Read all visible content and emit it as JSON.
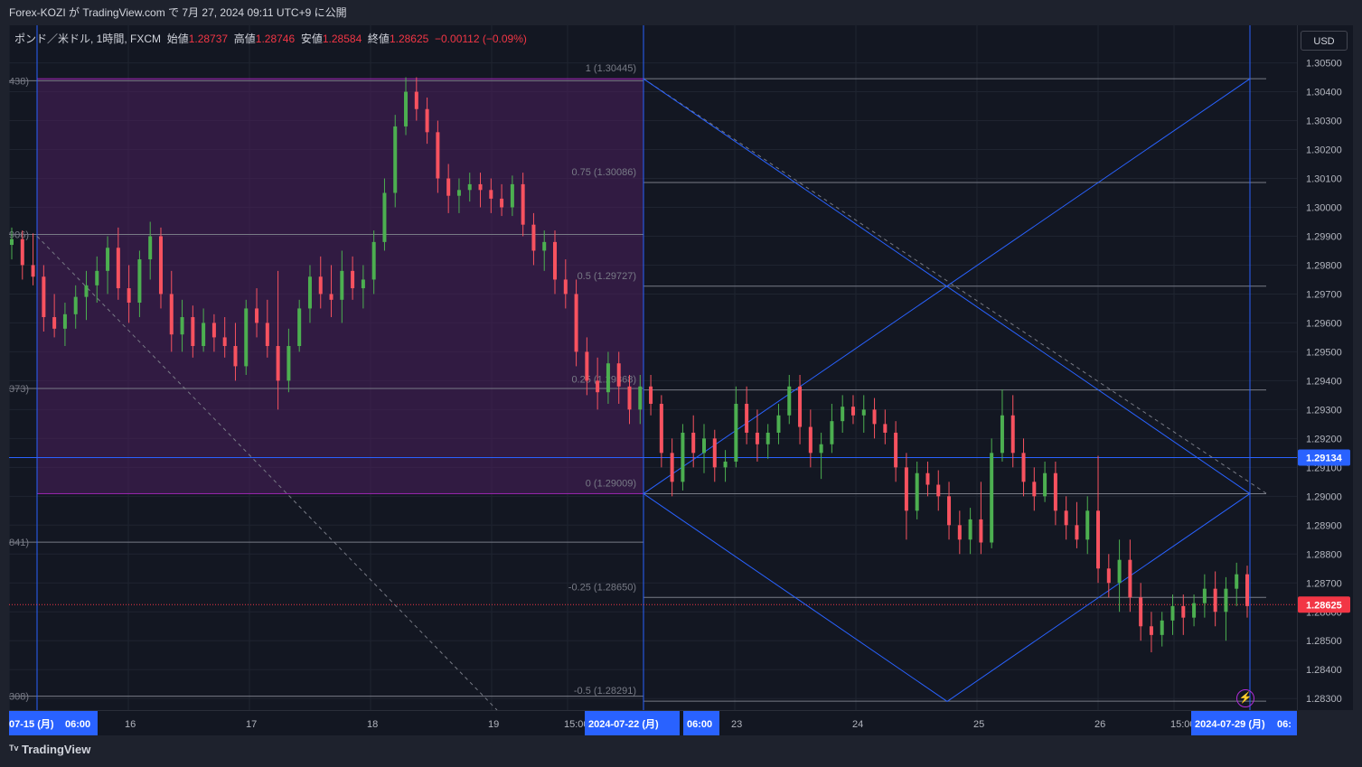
{
  "header": {
    "publish_text": "Forex-KOZI が TradingView.com で 7月 27, 2024 09:11 UTC+9 に公開"
  },
  "legend": {
    "symbol": "ポンド／米ドル, 1時間, FXCM",
    "open_label": "始値",
    "open": "1.28737",
    "high_label": "高値",
    "high": "1.28746",
    "low_label": "安値",
    "low": "1.28584",
    "close_label": "終値",
    "close": "1.28625",
    "change": "−0.00112 (−0.09%)"
  },
  "currency_button": "USD",
  "footer": {
    "brand": "TradingView"
  },
  "alert_icon": "lightning-icon",
  "colors": {
    "background": "#131722",
    "up": "#26a69a",
    "up_candle": "#4caf50",
    "down": "#f7525f",
    "fib_line": "#787b86",
    "blue_line": "#2962ff",
    "box_fill": "#4a1f5c",
    "box_border": "#9c27b0",
    "price_label_blue": "#2962ff",
    "price_label_red": "#f23645"
  },
  "chart_data": {
    "type": "candlestick",
    "symbol": "GBPUSD",
    "interval": "1h",
    "y_axis": {
      "ticks": [
        "1.30500",
        "1.30400",
        "1.30300",
        "1.30200",
        "1.30100",
        "1.30000",
        "1.29900",
        "1.29800",
        "1.29700",
        "1.29600",
        "1.29500",
        "1.29400",
        "1.29300",
        "1.29200",
        "1.29100",
        "1.29000",
        "1.28900",
        "1.28800",
        "1.28700",
        "1.28600",
        "1.28500",
        "1.28400",
        "1.28300"
      ],
      "ylim": [
        1.2826,
        1.3063
      ]
    },
    "x_axis": {
      "ticks": [
        {
          "label": "07-15 (月)",
          "highlight": true
        },
        {
          "label": "06:00",
          "highlight": true
        },
        {
          "label": "16"
        },
        {
          "label": "17"
        },
        {
          "label": "18"
        },
        {
          "label": "19"
        },
        {
          "label": "15:00"
        },
        {
          "label": "2024-07-22 (月)",
          "highlight": true
        },
        {
          "label": "06:00",
          "highlight": true
        },
        {
          "label": "23"
        },
        {
          "label": "24"
        },
        {
          "label": "25"
        },
        {
          "label": "26"
        },
        {
          "label": "15:00"
        },
        {
          "label": "2024-07-29 (月)",
          "highlight": true
        },
        {
          "label": "06:",
          "highlight": true
        }
      ]
    },
    "price_labels": [
      {
        "value": 1.29134,
        "text": "1.29134",
        "color": "blue"
      },
      {
        "value": 1.28625,
        "text": "1.28625",
        "color": "red"
      }
    ],
    "fib_levels": [
      {
        "ratio": "1",
        "price": 1.30445,
        "label": "1 (1.30445)"
      },
      {
        "ratio": "0.75",
        "price": 1.30086,
        "label": "0.75 (1.30086)"
      },
      {
        "ratio": "0.5",
        "price": 1.29727,
        "label": "0.5 (1.29727)"
      },
      {
        "ratio": "0.25",
        "price": 1.29368,
        "label": "0.25 (1.29368)"
      },
      {
        "ratio": "0",
        "price": 1.29009,
        "label": "0 (1.29009)"
      },
      {
        "ratio": "-0.25",
        "price": 1.2865,
        "label": "-0.25 (1.28650)"
      },
      {
        "ratio": "-0.5",
        "price": 1.28291,
        "label": "-0.5 (1.28291)"
      }
    ],
    "left_fib_partial_labels": [
      "438)",
      "906)",
      "373)",
      "841)",
      "308)"
    ],
    "left_fib_prices": [
      1.30438,
      1.29906,
      1.29373,
      1.28841,
      1.28308
    ],
    "candles": [
      [
        1.2987,
        1.2993,
        1.2982,
        1.2989
      ],
      [
        1.2989,
        1.2992,
        1.2975,
        1.298
      ],
      [
        1.298,
        1.2991,
        1.2973,
        1.2976
      ],
      [
        1.2976,
        1.298,
        1.2957,
        1.2962
      ],
      [
        1.2962,
        1.297,
        1.2955,
        1.2958
      ],
      [
        1.2958,
        1.2967,
        1.2952,
        1.2963
      ],
      [
        1.2963,
        1.2973,
        1.2958,
        1.2969
      ],
      [
        1.2969,
        1.2978,
        1.2961,
        1.2973
      ],
      [
        1.2973,
        1.2983,
        1.2967,
        1.2978
      ],
      [
        1.2978,
        1.299,
        1.297,
        1.2986
      ],
      [
        1.2986,
        1.2993,
        1.2968,
        1.2972
      ],
      [
        1.2972,
        1.298,
        1.296,
        1.2967
      ],
      [
        1.2967,
        1.2985,
        1.2962,
        1.2982
      ],
      [
        1.2982,
        1.2995,
        1.2975,
        1.299
      ],
      [
        1.299,
        1.2993,
        1.2965,
        1.297
      ],
      [
        1.297,
        1.2978,
        1.295,
        1.2956
      ],
      [
        1.2956,
        1.2968,
        1.295,
        1.2962
      ],
      [
        1.2962,
        1.2966,
        1.2948,
        1.2952
      ],
      [
        1.2952,
        1.2965,
        1.295,
        1.296
      ],
      [
        1.296,
        1.2963,
        1.295,
        1.2955
      ],
      [
        1.2955,
        1.2962,
        1.2948,
        1.2952
      ],
      [
        1.2952,
        1.296,
        1.294,
        1.2945
      ],
      [
        1.2945,
        1.2968,
        1.2942,
        1.2965
      ],
      [
        1.2965,
        1.2972,
        1.2955,
        1.296
      ],
      [
        1.296,
        1.2968,
        1.2948,
        1.2952
      ],
      [
        1.2952,
        1.2978,
        1.293,
        1.294
      ],
      [
        1.294,
        1.2958,
        1.2936,
        1.2952
      ],
      [
        1.2952,
        1.2968,
        1.295,
        1.2965
      ],
      [
        1.2965,
        1.298,
        1.296,
        1.2976
      ],
      [
        1.2976,
        1.2983,
        1.2965,
        1.297
      ],
      [
        1.297,
        1.298,
        1.2962,
        1.2968
      ],
      [
        1.2968,
        1.2985,
        1.296,
        1.2978
      ],
      [
        1.2978,
        1.2983,
        1.2968,
        1.2972
      ],
      [
        1.2972,
        1.298,
        1.2965,
        1.2975
      ],
      [
        1.2975,
        1.2992,
        1.297,
        1.2988
      ],
      [
        1.2988,
        1.301,
        1.2985,
        1.3005
      ],
      [
        1.3005,
        1.3032,
        1.3,
        1.3028
      ],
      [
        1.3028,
        1.3045,
        1.3025,
        1.304
      ],
      [
        1.304,
        1.3045,
        1.303,
        1.3034
      ],
      [
        1.3034,
        1.3038,
        1.3022,
        1.3026
      ],
      [
        1.3026,
        1.303,
        1.3005,
        1.301
      ],
      [
        1.301,
        1.3015,
        1.2998,
        1.3004
      ],
      [
        1.3004,
        1.301,
        1.2998,
        1.3006
      ],
      [
        1.3006,
        1.3012,
        1.3002,
        1.3008
      ],
      [
        1.3008,
        1.3012,
        1.3,
        1.3006
      ],
      [
        1.3006,
        1.301,
        1.2998,
        1.3003
      ],
      [
        1.3003,
        1.3008,
        1.2997,
        1.3
      ],
      [
        1.3,
        1.3011,
        1.2997,
        1.3008
      ],
      [
        1.3008,
        1.3012,
        1.299,
        1.2994
      ],
      [
        1.2994,
        1.2998,
        1.298,
        1.2985
      ],
      [
        1.2985,
        1.2992,
        1.2978,
        1.2988
      ],
      [
        1.2988,
        1.2992,
        1.297,
        1.2975
      ],
      [
        1.2975,
        1.2982,
        1.2965,
        1.297
      ],
      [
        1.297,
        1.2975,
        1.2945,
        1.295
      ],
      [
        1.295,
        1.2955,
        1.2935,
        1.294
      ],
      [
        1.294,
        1.2948,
        1.293,
        1.2936
      ],
      [
        1.2936,
        1.295,
        1.2932,
        1.2946
      ],
      [
        1.2946,
        1.295,
        1.2932,
        1.2938
      ],
      [
        1.2938,
        1.2942,
        1.2925,
        1.293
      ],
      [
        1.293,
        1.2942,
        1.2925,
        1.2938
      ],
      [
        1.2938,
        1.2942,
        1.2928,
        1.2932
      ],
      [
        1.2932,
        1.2935,
        1.291,
        1.2915
      ],
      [
        1.2915,
        1.292,
        1.29,
        1.2905
      ],
      [
        1.2905,
        1.2925,
        1.2902,
        1.2922
      ],
      [
        1.2922,
        1.2928,
        1.291,
        1.2915
      ],
      [
        1.2915,
        1.2925,
        1.2908,
        1.292
      ],
      [
        1.292,
        1.2923,
        1.2905,
        1.291
      ],
      [
        1.291,
        1.2916,
        1.2905,
        1.2912
      ],
      [
        1.2912,
        1.2938,
        1.291,
        1.2932
      ],
      [
        1.2932,
        1.2938,
        1.2918,
        1.2922
      ],
      [
        1.2922,
        1.293,
        1.2912,
        1.2918
      ],
      [
        1.2918,
        1.2925,
        1.2913,
        1.2922
      ],
      [
        1.2922,
        1.2932,
        1.2918,
        1.2928
      ],
      [
        1.2928,
        1.2942,
        1.2925,
        1.2938
      ],
      [
        1.2938,
        1.2942,
        1.2918,
        1.2924
      ],
      [
        1.2924,
        1.293,
        1.291,
        1.2915
      ],
      [
        1.2915,
        1.2922,
        1.2906,
        1.2918
      ],
      [
        1.2918,
        1.2932,
        1.2915,
        1.2926
      ],
      [
        1.2926,
        1.2935,
        1.2922,
        1.2931
      ],
      [
        1.2931,
        1.2935,
        1.2925,
        1.2928
      ],
      [
        1.2928,
        1.2935,
        1.2922,
        1.293
      ],
      [
        1.293,
        1.2934,
        1.292,
        1.2925
      ],
      [
        1.2925,
        1.293,
        1.2918,
        1.2922
      ],
      [
        1.2922,
        1.2926,
        1.2905,
        1.291
      ],
      [
        1.291,
        1.2915,
        1.2885,
        1.2895
      ],
      [
        1.2895,
        1.2912,
        1.2892,
        1.2908
      ],
      [
        1.2908,
        1.2912,
        1.29,
        1.2904
      ],
      [
        1.2904,
        1.2909,
        1.2895,
        1.29
      ],
      [
        1.29,
        1.2905,
        1.2885,
        1.289
      ],
      [
        1.289,
        1.2895,
        1.288,
        1.2885
      ],
      [
        1.2885,
        1.2896,
        1.288,
        1.2892
      ],
      [
        1.2892,
        1.2905,
        1.288,
        1.2884
      ],
      [
        1.2884,
        1.292,
        1.2882,
        1.2915
      ],
      [
        1.2915,
        1.2937,
        1.2912,
        1.2928
      ],
      [
        1.2928,
        1.2935,
        1.291,
        1.2915
      ],
      [
        1.2915,
        1.292,
        1.29,
        1.2905
      ],
      [
        1.2905,
        1.291,
        1.2895,
        1.29
      ],
      [
        1.29,
        1.2912,
        1.2898,
        1.2908
      ],
      [
        1.2908,
        1.2912,
        1.289,
        1.2895
      ],
      [
        1.2895,
        1.29,
        1.2885,
        1.289
      ],
      [
        1.289,
        1.2898,
        1.2882,
        1.2885
      ],
      [
        1.2885,
        1.29,
        1.288,
        1.2895
      ],
      [
        1.2895,
        1.2914,
        1.287,
        1.2875
      ],
      [
        1.2875,
        1.288,
        1.2865,
        1.287
      ],
      [
        1.287,
        1.2885,
        1.286,
        1.2878
      ],
      [
        1.2878,
        1.2885,
        1.286,
        1.2865
      ],
      [
        1.2865,
        1.287,
        1.285,
        1.2855
      ],
      [
        1.2855,
        1.286,
        1.2846,
        1.2852
      ],
      [
        1.2852,
        1.286,
        1.2848,
        1.2857
      ],
      [
        1.2857,
        1.2866,
        1.2852,
        1.2862
      ],
      [
        1.2862,
        1.2866,
        1.2852,
        1.2858
      ],
      [
        1.2858,
        1.2866,
        1.2855,
        1.2863
      ],
      [
        1.2863,
        1.2873,
        1.2858,
        1.2868
      ],
      [
        1.2868,
        1.2874,
        1.2855,
        1.286
      ],
      [
        1.286,
        1.2872,
        1.285,
        1.2868
      ],
      [
        1.2868,
        1.2877,
        1.2862,
        1.2873
      ],
      [
        1.2873,
        1.2876,
        1.2858,
        1.2862
      ]
    ]
  }
}
